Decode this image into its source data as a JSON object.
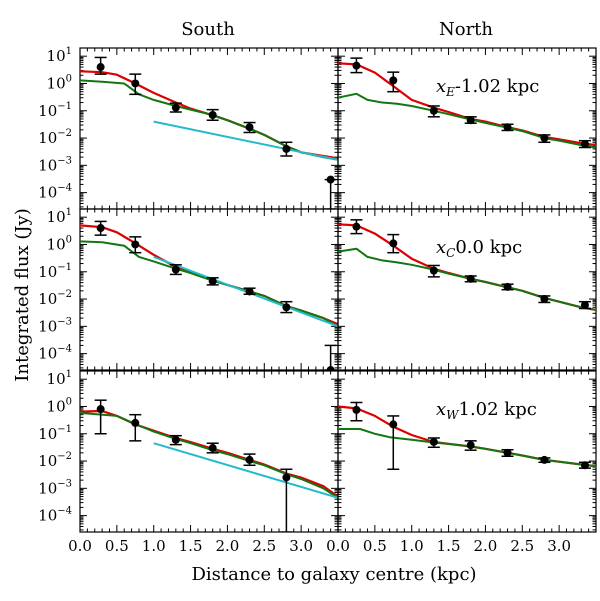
{
  "figure": {
    "ylabel": "Integrated flux (Jy)",
    "xlabel": "Distance to galaxy centre (kpc)",
    "col_titles": [
      "South",
      "North"
    ],
    "x_ticks_left": [
      "0.0",
      "0.5",
      "1.0",
      "1.5",
      "2.0",
      "2.5",
      "3.0"
    ],
    "x_ticks_right": [
      "0.0",
      "0.5",
      "1.0",
      "1.5",
      "2.0",
      "2.5",
      "3.0"
    ],
    "y_ticks": [
      "10^1",
      "10^0",
      "10^-1",
      "10^-2",
      "10^-3",
      "10^-4"
    ]
  },
  "colors": {
    "model": "#dd0000",
    "component": "#117711",
    "fit": "#22bbcc",
    "data": "#000000"
  },
  "chart_data": [
    {
      "type": "line",
      "row": 0,
      "col": 0,
      "side": "South",
      "label": "",
      "xlim": [
        0,
        3.5
      ],
      "ylim_log10": [
        -4.6,
        1.3
      ],
      "yscale": "log",
      "grid": false,
      "points": [
        {
          "x": 0.28,
          "y": 4.0,
          "lo": 2.2,
          "hi": 9.0
        },
        {
          "x": 0.75,
          "y": 1.0,
          "lo": 0.4,
          "hi": 2.2
        },
        {
          "x": 1.3,
          "y": 0.13,
          "lo": 0.09,
          "hi": 0.19
        },
        {
          "x": 1.8,
          "y": 0.07,
          "lo": 0.045,
          "hi": 0.11
        },
        {
          "x": 2.3,
          "y": 0.025,
          "lo": 0.016,
          "hi": 0.037
        },
        {
          "x": 2.8,
          "y": 0.004,
          "lo": 0.0022,
          "hi": 0.007
        },
        {
          "x": 3.4,
          "y": 0.0003,
          "lo": 2.5e-05,
          "hi": 0.0003
        }
      ],
      "series": [
        {
          "name": "model",
          "x": [
            0,
            0.3,
            0.5,
            0.75,
            1.0,
            1.3,
            1.5,
            1.8,
            2.0,
            2.3,
            2.5,
            2.8,
            3.0,
            3.3,
            3.5
          ],
          "y": [
            2.8,
            2.6,
            2.1,
            1.0,
            0.45,
            0.2,
            0.12,
            0.068,
            0.045,
            0.022,
            0.013,
            0.005,
            0.003,
            0.0022,
            0.0018
          ]
        },
        {
          "name": "component",
          "x": [
            0,
            0.3,
            0.6,
            0.8,
            1.0,
            1.3,
            1.5,
            1.8,
            2.0,
            2.3,
            2.5,
            2.8,
            3.0,
            3.3,
            3.5
          ],
          "y": [
            1.3,
            1.15,
            1.0,
            0.4,
            0.25,
            0.15,
            0.11,
            0.07,
            0.045,
            0.022,
            0.013,
            0.005,
            0.003,
            0.002,
            0.0016
          ]
        },
        {
          "name": "fit",
          "x": [
            1.0,
            3.5
          ],
          "y": [
            0.04,
            0.0016
          ]
        }
      ]
    },
    {
      "type": "line",
      "row": 0,
      "col": 1,
      "side": "North",
      "label": "x_E=-1.02 kpc",
      "xlim": [
        0,
        3.5
      ],
      "ylim_log10": [
        -4.6,
        1.3
      ],
      "yscale": "log",
      "grid": false,
      "points": [
        {
          "x": 0.25,
          "y": 4.5,
          "lo": 2.5,
          "hi": 8.5
        },
        {
          "x": 0.75,
          "y": 1.3,
          "lo": 0.5,
          "hi": 2.6
        },
        {
          "x": 1.3,
          "y": 0.1,
          "lo": 0.06,
          "hi": 0.15
        },
        {
          "x": 1.8,
          "y": 0.045,
          "lo": 0.035,
          "hi": 0.06
        },
        {
          "x": 2.3,
          "y": 0.025,
          "lo": 0.019,
          "hi": 0.032
        },
        {
          "x": 2.8,
          "y": 0.01,
          "lo": 0.007,
          "hi": 0.013
        },
        {
          "x": 3.35,
          "y": 0.006,
          "lo": 0.0045,
          "hi": 0.008
        }
      ],
      "series": [
        {
          "name": "model",
          "x": [
            0,
            0.25,
            0.5,
            0.75,
            1.0,
            1.3,
            1.5,
            1.8,
            2.0,
            2.3,
            2.5,
            2.8,
            3.0,
            3.3,
            3.5
          ],
          "y": [
            5.5,
            5.0,
            2.5,
            0.8,
            0.25,
            0.13,
            0.09,
            0.05,
            0.04,
            0.025,
            0.019,
            0.011,
            0.009,
            0.0065,
            0.0055
          ]
        },
        {
          "name": "component",
          "x": [
            0,
            0.25,
            0.4,
            0.6,
            0.8,
            1.0,
            1.3,
            1.5,
            1.8,
            2.0,
            2.3,
            2.5,
            2.8,
            3.0,
            3.3,
            3.5
          ],
          "y": [
            0.3,
            0.42,
            0.25,
            0.2,
            0.18,
            0.15,
            0.1,
            0.075,
            0.048,
            0.036,
            0.024,
            0.018,
            0.01,
            0.008,
            0.0055,
            0.0045
          ]
        }
      ]
    },
    {
      "type": "line",
      "row": 1,
      "col": 0,
      "side": "South",
      "label": "",
      "xlim": [
        0,
        3.5
      ],
      "ylim_log10": [
        -4.6,
        1.3
      ],
      "yscale": "log",
      "grid": false,
      "points": [
        {
          "x": 0.28,
          "y": 4.0,
          "lo": 2.2,
          "hi": 7.0
        },
        {
          "x": 0.75,
          "y": 1.0,
          "lo": 0.5,
          "hi": 1.9
        },
        {
          "x": 1.3,
          "y": 0.12,
          "lo": 0.08,
          "hi": 0.18
        },
        {
          "x": 1.8,
          "y": 0.045,
          "lo": 0.033,
          "hi": 0.06
        },
        {
          "x": 2.3,
          "y": 0.019,
          "lo": 0.015,
          "hi": 0.025
        },
        {
          "x": 2.8,
          "y": 0.005,
          "lo": 0.0032,
          "hi": 0.008
        },
        {
          "x": 3.4,
          "y": 2.5e-05,
          "lo": 2.5e-05,
          "hi": 0.0002
        }
      ],
      "series": [
        {
          "name": "model",
          "x": [
            0,
            0.3,
            0.5,
            0.75,
            1.0,
            1.3,
            1.5,
            1.8,
            2.0,
            2.3,
            2.5,
            2.8,
            3.0,
            3.3,
            3.5
          ],
          "y": [
            5.0,
            4.3,
            2.8,
            1.1,
            0.42,
            0.15,
            0.1,
            0.048,
            0.033,
            0.019,
            0.013,
            0.0055,
            0.0038,
            0.002,
            0.0012
          ]
        },
        {
          "name": "component",
          "x": [
            0,
            0.3,
            0.6,
            0.8,
            1.0,
            1.3,
            1.5,
            1.8,
            2.0,
            2.3,
            2.5,
            2.8,
            3.0,
            3.3,
            3.5
          ],
          "y": [
            1.3,
            1.2,
            0.9,
            0.35,
            0.24,
            0.13,
            0.09,
            0.047,
            0.033,
            0.019,
            0.013,
            0.0055,
            0.0038,
            0.002,
            0.001
          ]
        },
        {
          "name": "fit",
          "x": [
            1.0,
            3.5
          ],
          "y": [
            0.35,
            0.001
          ]
        }
      ]
    },
    {
      "type": "line",
      "row": 1,
      "col": 1,
      "side": "North",
      "label": "x_C=0.0 kpc",
      "xlim": [
        0,
        3.5
      ],
      "ylim_log10": [
        -4.6,
        1.3
      ],
      "yscale": "log",
      "grid": false,
      "points": [
        {
          "x": 0.25,
          "y": 4.5,
          "lo": 2.5,
          "hi": 8.0
        },
        {
          "x": 0.75,
          "y": 1.1,
          "lo": 0.5,
          "hi": 2.3
        },
        {
          "x": 1.3,
          "y": 0.11,
          "lo": 0.065,
          "hi": 0.17
        },
        {
          "x": 1.8,
          "y": 0.055,
          "lo": 0.043,
          "hi": 0.07
        },
        {
          "x": 2.3,
          "y": 0.028,
          "lo": 0.022,
          "hi": 0.035
        },
        {
          "x": 2.8,
          "y": 0.01,
          "lo": 0.0075,
          "hi": 0.013
        },
        {
          "x": 3.35,
          "y": 0.006,
          "lo": 0.0045,
          "hi": 0.008
        }
      ],
      "series": [
        {
          "name": "model",
          "x": [
            0,
            0.25,
            0.5,
            0.75,
            1.0,
            1.3,
            1.5,
            1.8,
            2.0,
            2.3,
            2.5,
            2.8,
            3.0,
            3.3,
            3.5
          ],
          "y": [
            5.5,
            5.0,
            2.5,
            0.9,
            0.3,
            0.13,
            0.09,
            0.055,
            0.042,
            0.027,
            0.02,
            0.011,
            0.008,
            0.005,
            0.004
          ]
        },
        {
          "name": "component",
          "x": [
            0,
            0.25,
            0.4,
            0.6,
            0.8,
            1.0,
            1.3,
            1.5,
            1.8,
            2.0,
            2.3,
            2.5,
            2.8,
            3.0,
            3.3,
            3.5
          ],
          "y": [
            0.55,
            0.7,
            0.35,
            0.26,
            0.22,
            0.18,
            0.12,
            0.085,
            0.055,
            0.042,
            0.027,
            0.02,
            0.011,
            0.008,
            0.005,
            0.004
          ]
        }
      ]
    },
    {
      "type": "line",
      "row": 2,
      "col": 0,
      "side": "South",
      "label": "",
      "xlim": [
        0,
        3.5
      ],
      "ylim_log10": [
        -4.6,
        1.3
      ],
      "yscale": "log",
      "grid": false,
      "points": [
        {
          "x": 0.28,
          "y": 0.8,
          "lo": 0.1,
          "hi": 1.7
        },
        {
          "x": 0.75,
          "y": 0.25,
          "lo": 0.055,
          "hi": 0.5
        },
        {
          "x": 1.3,
          "y": 0.06,
          "lo": 0.04,
          "hi": 0.085
        },
        {
          "x": 1.8,
          "y": 0.03,
          "lo": 0.02,
          "hi": 0.045
        },
        {
          "x": 2.3,
          "y": 0.011,
          "lo": 0.007,
          "hi": 0.018
        },
        {
          "x": 2.8,
          "y": 0.0025,
          "lo": 2.5e-05,
          "hi": 0.005
        }
      ],
      "series": [
        {
          "name": "model",
          "x": [
            0,
            0.3,
            0.5,
            0.75,
            1.0,
            1.3,
            1.5,
            1.8,
            2.0,
            2.3,
            2.5,
            2.8,
            3.0,
            3.3,
            3.5
          ],
          "y": [
            0.65,
            0.68,
            0.45,
            0.22,
            0.13,
            0.07,
            0.05,
            0.028,
            0.02,
            0.011,
            0.0075,
            0.0035,
            0.0025,
            0.0012,
            0.0005
          ]
        },
        {
          "name": "component",
          "x": [
            0,
            0.5,
            0.8,
            1.0,
            1.3,
            1.5,
            1.8,
            2.0,
            2.3,
            2.5,
            2.8,
            3.0,
            3.3,
            3.5
          ],
          "y": [
            0.58,
            0.45,
            0.2,
            0.12,
            0.065,
            0.045,
            0.025,
            0.018,
            0.01,
            0.007,
            0.0033,
            0.0022,
            0.001,
            0.00045
          ]
        },
        {
          "name": "fit",
          "x": [
            1.0,
            3.5
          ],
          "y": [
            0.045,
            0.00045
          ]
        }
      ]
    },
    {
      "type": "line",
      "row": 2,
      "col": 1,
      "side": "North",
      "label": "x_W=1.02 kpc",
      "xlim": [
        0,
        3.5
      ],
      "ylim_log10": [
        -4.6,
        1.3
      ],
      "yscale": "log",
      "grid": false,
      "points": [
        {
          "x": 0.25,
          "y": 0.75,
          "lo": 0.3,
          "hi": 1.4
        },
        {
          "x": 0.75,
          "y": 0.22,
          "lo": 0.005,
          "hi": 0.45
        },
        {
          "x": 1.3,
          "y": 0.05,
          "lo": 0.032,
          "hi": 0.07
        },
        {
          "x": 1.8,
          "y": 0.038,
          "lo": 0.025,
          "hi": 0.055
        },
        {
          "x": 2.3,
          "y": 0.02,
          "lo": 0.015,
          "hi": 0.026
        },
        {
          "x": 2.8,
          "y": 0.011,
          "lo": 0.009,
          "hi": 0.013
        },
        {
          "x": 3.35,
          "y": 0.007,
          "lo": 0.0055,
          "hi": 0.009
        }
      ],
      "series": [
        {
          "name": "model",
          "x": [
            0,
            0.25,
            0.5,
            0.75,
            1.0,
            1.3,
            1.5,
            1.8,
            2.0,
            2.3,
            2.5,
            2.8,
            3.0,
            3.3,
            3.5
          ],
          "y": [
            1.0,
            0.85,
            0.45,
            0.18,
            0.09,
            0.05,
            0.043,
            0.034,
            0.028,
            0.02,
            0.016,
            0.011,
            0.0095,
            0.0075,
            0.0065
          ]
        },
        {
          "name": "component",
          "x": [
            0,
            0.3,
            0.5,
            0.7,
            1.0,
            1.3,
            1.5,
            1.8,
            2.0,
            2.3,
            2.5,
            2.8,
            3.0,
            3.3,
            3.5
          ],
          "y": [
            0.15,
            0.15,
            0.1,
            0.075,
            0.06,
            0.048,
            0.042,
            0.034,
            0.028,
            0.02,
            0.016,
            0.011,
            0.0095,
            0.0075,
            0.0065
          ]
        }
      ]
    }
  ]
}
